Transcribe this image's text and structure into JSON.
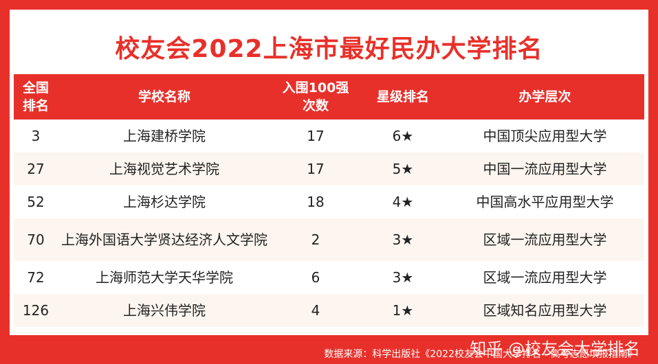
{
  "title": "校友会2022上海市最好民办大学排名",
  "headers": {
    "rank": "全国排名",
    "school": "学校名称",
    "times": "入围100强次数",
    "stars": "星级排名",
    "level": "办学层次"
  },
  "rows": [
    {
      "rank": "3",
      "school": "上海建桥学院",
      "times": "17",
      "stars": "6★",
      "level": "中国顶尖应用型大学"
    },
    {
      "rank": "27",
      "school": "上海视觉艺术学院",
      "times": "17",
      "stars": "5★",
      "level": "中国一流应用型大学"
    },
    {
      "rank": "52",
      "school": "上海杉达学院",
      "times": "18",
      "stars": "4★",
      "level": "中国高水平应用型大学"
    },
    {
      "rank": "70",
      "school": "上海外国语大学贤达经济人文学院",
      "times": "2",
      "stars": "3★",
      "level": "区域一流应用型大学"
    },
    {
      "rank": "72",
      "school": "上海师范大学天华学院",
      "times": "6",
      "stars": "3★",
      "level": "区域一流应用型大学"
    },
    {
      "rank": "126",
      "school": "上海兴伟学院",
      "times": "4",
      "stars": "1★",
      "level": "区域知名应用型大学"
    }
  ],
  "watermark": "知乎 @校友会大学排名",
  "source": "数据来源：科学出版社《2022校友会中国大学排名—高考志愿填报指南》",
  "colors": {
    "accent": "#e8302a",
    "row_alt": "#fdf5ef"
  }
}
